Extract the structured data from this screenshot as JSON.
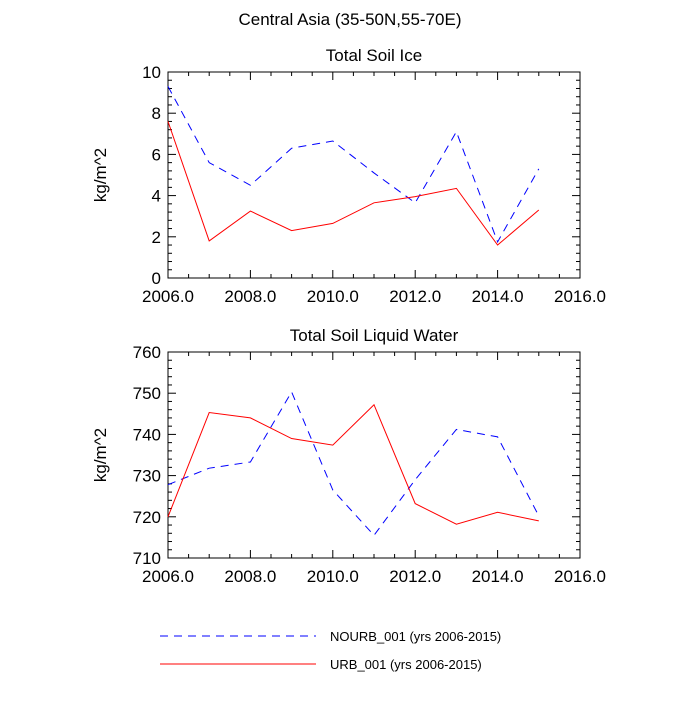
{
  "figure": {
    "suptitle": "Central Asia (35-50N,55-70E)"
  },
  "colors": {
    "nourb": "#0000ff",
    "urb": "#ff0000",
    "axis": "#000000"
  },
  "chart_data": [
    {
      "type": "line",
      "title": "Total Soil Ice",
      "xlabel": "",
      "ylabel": "kg/m^2",
      "xlim": [
        2006,
        2016
      ],
      "ylim": [
        0,
        10
      ],
      "xticks": [
        2006,
        2008,
        2010,
        2012,
        2014,
        2016
      ],
      "xtick_labels": [
        "2006.0",
        "2008.0",
        "2010.0",
        "2012.0",
        "2014.0",
        "2016.0"
      ],
      "yticks": [
        0,
        2,
        4,
        6,
        8,
        10
      ],
      "ytick_labels": [
        "0",
        "2",
        "4",
        "6",
        "8",
        "10"
      ],
      "x": [
        2006,
        2007,
        2008,
        2009,
        2010,
        2011,
        2012,
        2013,
        2014,
        2015
      ],
      "series": [
        {
          "name": "NOURB_001 (yrs 2006-2015)",
          "style": "dashed",
          "color": "#0000ff",
          "values": [
            9.3,
            5.6,
            4.5,
            6.3,
            6.65,
            5.1,
            3.65,
            7.1,
            1.75,
            5.3
          ]
        },
        {
          "name": "URB_001 (yrs 2006-2015)",
          "style": "solid",
          "color": "#ff0000",
          "values": [
            7.6,
            1.8,
            3.25,
            2.3,
            2.65,
            3.65,
            3.95,
            4.35,
            1.6,
            3.3
          ]
        }
      ]
    },
    {
      "type": "line",
      "title": "Total Soil Liquid Water",
      "xlabel": "",
      "ylabel": "kg/m^2",
      "xlim": [
        2006,
        2016
      ],
      "ylim": [
        710,
        760
      ],
      "xticks": [
        2006,
        2008,
        2010,
        2012,
        2014,
        2016
      ],
      "xtick_labels": [
        "2006.0",
        "2008.0",
        "2010.0",
        "2012.0",
        "2014.0",
        "2016.0"
      ],
      "yticks": [
        710,
        720,
        730,
        740,
        750,
        760
      ],
      "ytick_labels": [
        "710",
        "720",
        "730",
        "740",
        "750",
        "760"
      ],
      "x": [
        2006,
        2007,
        2008,
        2009,
        2010,
        2011,
        2012,
        2013,
        2014,
        2015
      ],
      "series": [
        {
          "name": "NOURB_001 (yrs 2006-2015)",
          "style": "dashed",
          "color": "#0000ff",
          "values": [
            727.8,
            731.8,
            733.3,
            750.3,
            726.5,
            715.5,
            729.0,
            741.2,
            739.4,
            720.2
          ]
        },
        {
          "name": "URB_001 (yrs 2006-2015)",
          "style": "solid",
          "color": "#ff0000",
          "values": [
            720.0,
            745.3,
            744.0,
            739.0,
            737.4,
            747.2,
            723.2,
            718.2,
            721.1,
            719.0
          ]
        }
      ]
    }
  ],
  "legend": {
    "placement": "bottom",
    "items": [
      {
        "label": "NOURB_001 (yrs 2006-2015)",
        "style": "dashed",
        "color": "#0000ff"
      },
      {
        "label": "URB_001 (yrs 2006-2015)",
        "style": "solid",
        "color": "#ff0000"
      }
    ]
  }
}
